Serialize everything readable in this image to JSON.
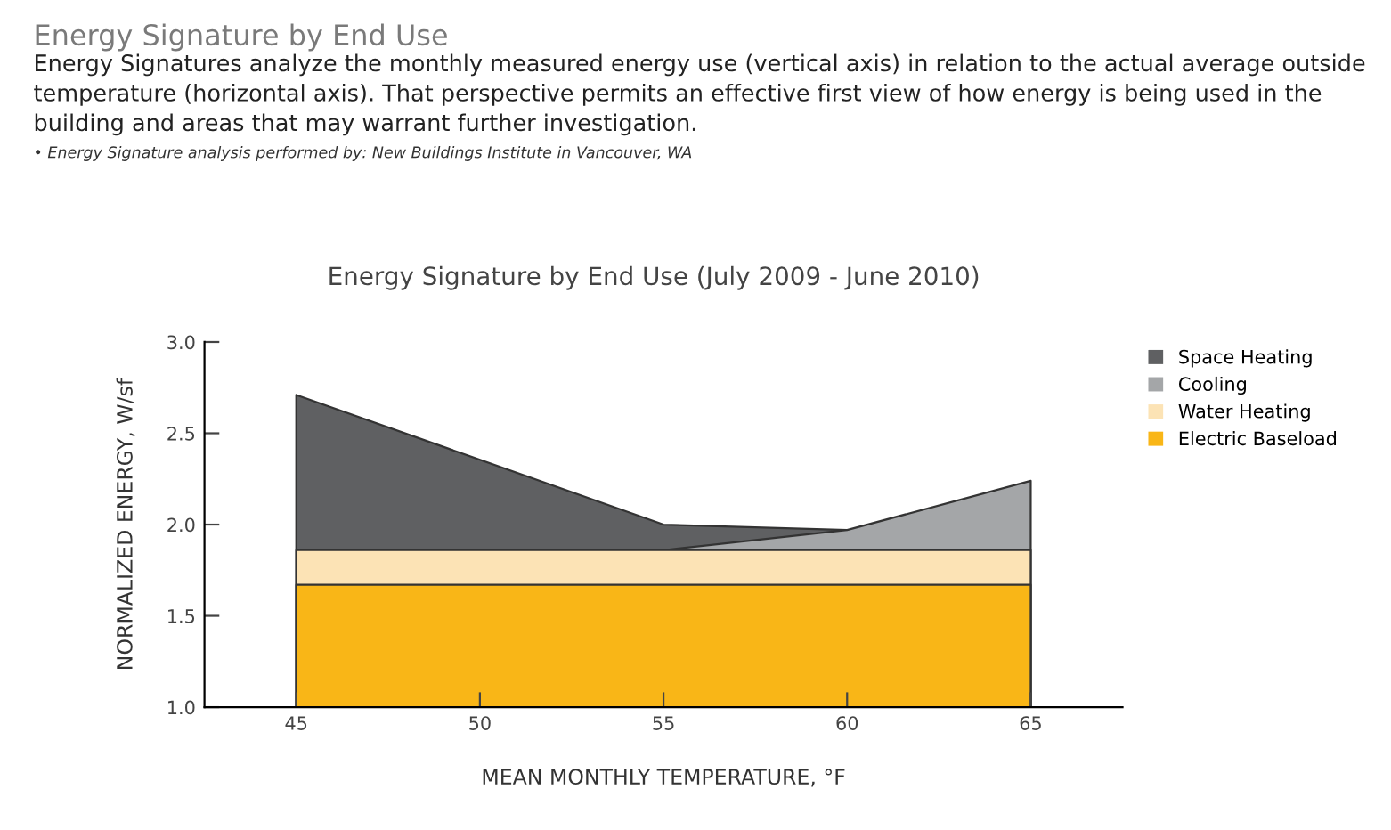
{
  "chart_data": {
    "type": "area",
    "title": "Energy Signature by End Use",
    "subtitle": "Energy Signatures analyze the monthly measured energy use (vertical axis) in relation to the actual average outside temperature (horizontal axis). That perspective permits an effective first view of how energy is being used in the building and areas that may warrant further investigation.",
    "annotations": [
      "• Energy Signature analysis performed by: New Buildings Institute in Vancouver, WA",
      "Energy Signature by End Use (July 2009 - June 2010)"
    ],
    "xlabel": "MEAN MONTHLY TEMPERATURE, °F",
    "ylabel": "NORMALIZED ENERGY, W/sf",
    "xlim": [
      42.5,
      67.5
    ],
    "xticks": [
      45,
      50,
      55,
      60,
      65
    ],
    "ylim": [
      1.0,
      3.0
    ],
    "yticks": [
      {
        "value": 1.0,
        "label": "1.0"
      },
      1.5,
      {
        "value": 2.0,
        "label": "2.0"
      },
      2.5,
      {
        "value": 3.0,
        "label": "3.0"
      }
    ],
    "grid": false,
    "legend": "top right",
    "series": [
      {
        "name": "Space Heating",
        "color": "#5f6062",
        "x": [
          45,
          55,
          60
        ],
        "values": [
          2.71,
          2.0,
          1.97
        ]
      },
      {
        "name": "Cooling",
        "color": "#a4a6a8",
        "x": [
          55,
          60,
          65
        ],
        "values": [
          1.86,
          1.97,
          2.24
        ]
      },
      {
        "name": "Water Heating",
        "color": "#fce3b5",
        "x": [
          45,
          65
        ],
        "values": [
          1.86,
          1.86
        ]
      },
      {
        "name": "Electric Baseload",
        "color": "#f9b617",
        "x": [
          45,
          65
        ],
        "values": [
          1.67,
          1.67
        ]
      }
    ]
  }
}
